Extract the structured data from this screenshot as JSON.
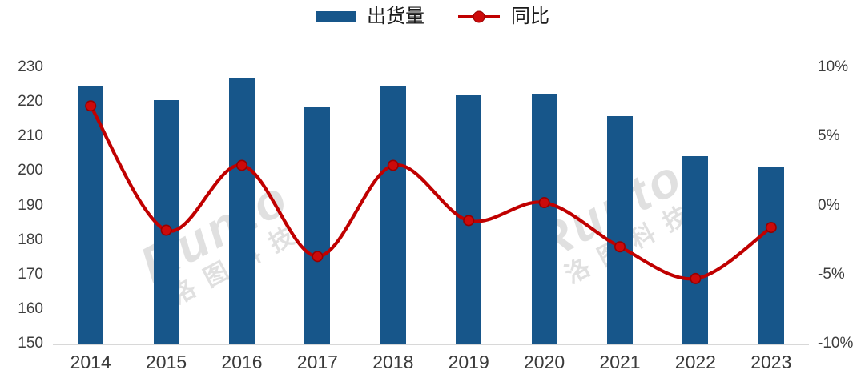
{
  "legend": {
    "bar_label": "出货量",
    "line_label": "同比"
  },
  "watermark": {
    "brand": "Runto",
    "cn": "洛图科技"
  },
  "colors": {
    "bar": "#17568A",
    "line": "#C00000",
    "marker_fill": "#CC0A0A",
    "marker_stroke": "#960000",
    "axis_line": "#D8D8D8",
    "axis_text": "#3D3D3D",
    "watermark": "#C7C7C7"
  },
  "chart_data": {
    "type": "bar",
    "subtype": "bar+line combo, dual axis",
    "categories": [
      "2014",
      "2015",
      "2016",
      "2017",
      "2018",
      "2019",
      "2020",
      "2021",
      "2022",
      "2023"
    ],
    "series": [
      {
        "name": "出货量",
        "type": "bar",
        "axis": "left",
        "values": [
          224.4,
          220.6,
          226.7,
          218.4,
          224.4,
          221.9,
          222.4,
          215.9,
          204.3,
          201.3
        ]
      },
      {
        "name": "同比",
        "type": "line",
        "axis": "right",
        "unit": "%",
        "values": [
          7.2,
          -1.8,
          2.9,
          -3.7,
          2.9,
          -1.1,
          0.2,
          -3.0,
          -5.3,
          -1.6
        ]
      }
    ],
    "left_axis": {
      "min": 150,
      "max": 230,
      "tick_labels": [
        "230",
        "220",
        "210",
        "200",
        "190",
        "180",
        "170",
        "160",
        "150"
      ]
    },
    "right_axis": {
      "min": -10,
      "max": 10,
      "tick_labels": [
        "10%",
        "5%",
        "0%",
        "-5%",
        "-10%"
      ]
    },
    "grid": false,
    "legend_position": "top-center",
    "title": ""
  }
}
